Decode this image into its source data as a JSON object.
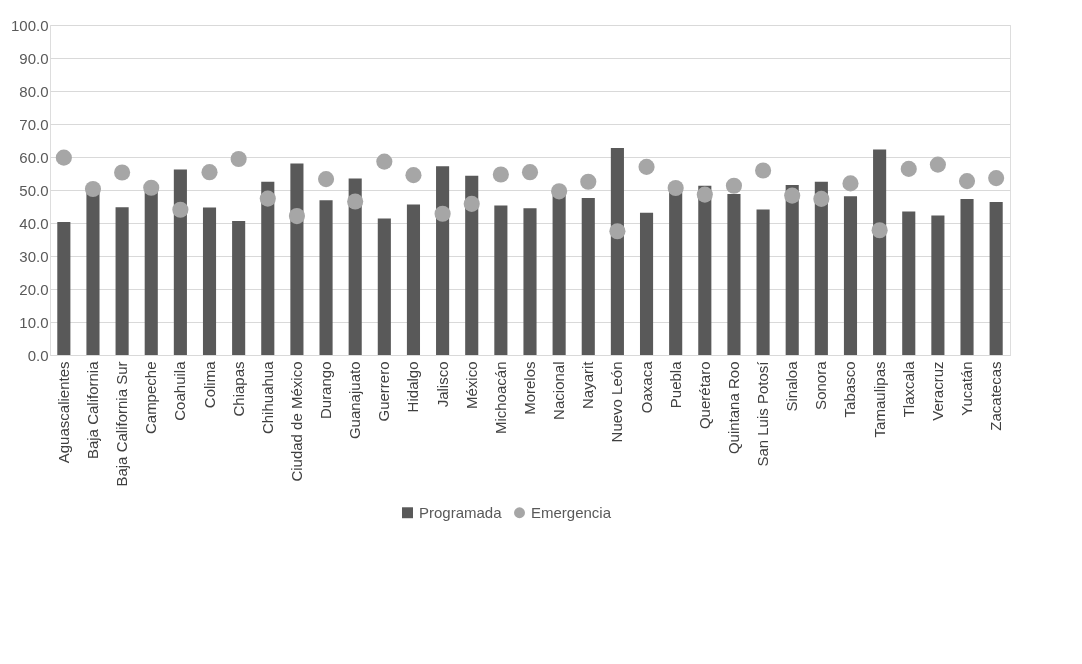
{
  "chart_data": {
    "type": "bar",
    "categories": [
      "Aguascalientes",
      "Baja California",
      "Baja California Sur",
      "Campeche",
      "Coahuila",
      "Colima",
      "Chiapas",
      "Chihuahua",
      "Ciudad de México",
      "Durango",
      "Guanajuato",
      "Guerrero",
      "Hidalgo",
      "Jalisco",
      "México",
      "Michoacán",
      "Morelos",
      "Nacional",
      "Nayarit",
      "Nuevo León",
      "Oaxaca",
      "Puebla",
      "Querétaro",
      "Quintana Roo",
      "San Luis Potosí",
      "Sinaloa",
      "Sonora",
      "Tabasco",
      "Tamaulipas",
      "Tlaxcala",
      "Veracruz",
      "Yucatán",
      "Zacatecas"
    ],
    "series": [
      {
        "name": "Programada",
        "color": "#595959",
        "values": [
          40.3,
          49.5,
          44.8,
          49.6,
          56.2,
          44.7,
          40.6,
          52.5,
          58.0,
          46.9,
          53.5,
          41.4,
          45.6,
          57.2,
          54.3,
          45.3,
          44.5,
          48.7,
          47.6,
          62.7,
          43.1,
          49.8,
          51.3,
          48.8,
          44.1,
          51.5,
          52.5,
          48.1,
          62.3,
          43.5,
          42.3,
          47.3,
          46.4
        ]
      },
      {
        "name": "Emergencia",
        "type": "scatter",
        "color": "#a6a6a6",
        "marker": "circle",
        "values": [
          59.8,
          50.3,
          55.3,
          50.7,
          44.0,
          55.4,
          59.4,
          47.4,
          42.1,
          53.3,
          46.5,
          58.6,
          54.5,
          42.8,
          45.8,
          54.7,
          55.4,
          49.6,
          52.5,
          37.5,
          57.0,
          50.6,
          48.6,
          51.3,
          55.9,
          48.3,
          47.3,
          52.0,
          37.8,
          56.4,
          57.7,
          52.7,
          53.6
        ]
      }
    ],
    "ylim": [
      0,
      100
    ],
    "yticks": [
      {
        "value": 0,
        "label": "0.0"
      },
      {
        "value": 10,
        "label": "10.0"
      },
      {
        "value": 20,
        "label": "20.0"
      },
      {
        "value": 30,
        "label": "30.0"
      },
      {
        "value": 40,
        "label": "40.0"
      },
      {
        "value": 50,
        "label": "50.0"
      },
      {
        "value": 60,
        "label": "60.0"
      },
      {
        "value": 70,
        "label": "70.0"
      },
      {
        "value": 80,
        "label": "80.0"
      },
      {
        "value": 90,
        "label": "90.0"
      },
      {
        "value": 100,
        "label": "100.0"
      }
    ],
    "grid": "y",
    "legend": "bottom"
  }
}
